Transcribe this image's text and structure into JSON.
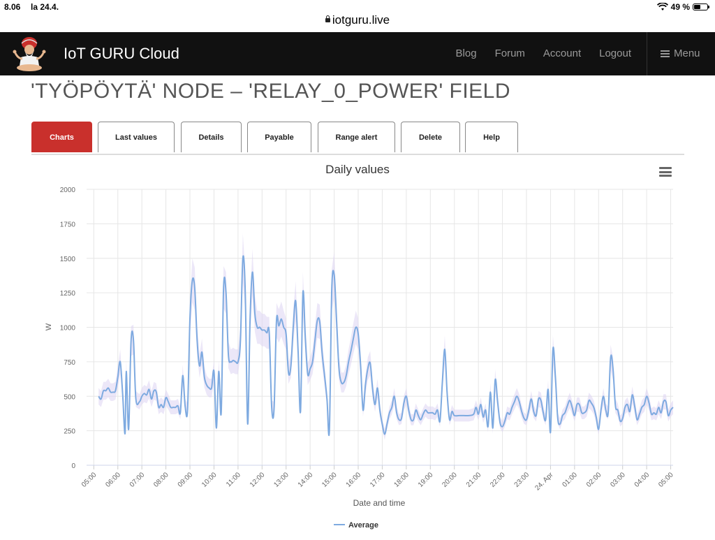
{
  "status": {
    "time": "8.06",
    "date": "la 24.4.",
    "battery_text": "49 %",
    "battery_level": 0.49
  },
  "url": "iotguru.live",
  "nav": {
    "brand": "IoT GURU Cloud",
    "links": [
      "Blog",
      "Forum",
      "Account",
      "Logout"
    ],
    "menu_label": "Menu"
  },
  "page_title": "'TYÖPÖYTÄ' NODE – 'RELAY_0_POWER' FIELD",
  "tabs": [
    {
      "label": "Charts",
      "active": true
    },
    {
      "label": "Last values",
      "active": false
    },
    {
      "label": "Details",
      "active": false
    },
    {
      "label": "Payable",
      "active": false
    },
    {
      "label": "Range alert",
      "active": false
    },
    {
      "label": "Delete",
      "active": false
    },
    {
      "label": "Help",
      "active": false
    }
  ],
  "colors": {
    "accent": "#c9302c",
    "series": "#7eaae0",
    "range": "#dcd3f2"
  },
  "chart_data": {
    "type": "line",
    "title": "Daily values",
    "xlabel": "Date and time",
    "ylabel": "W",
    "ylim": [
      0,
      2000
    ],
    "yticks": [
      0,
      250,
      500,
      750,
      1000,
      1250,
      1500,
      1750,
      2000
    ],
    "xlim": [
      4.7,
      29.1
    ],
    "xticks": [
      {
        "label": "05:00",
        "x": 5
      },
      {
        "label": "06:00",
        "x": 6
      },
      {
        "label": "07:00",
        "x": 7
      },
      {
        "label": "08:00",
        "x": 8
      },
      {
        "label": "09:00",
        "x": 9
      },
      {
        "label": "10:00",
        "x": 10
      },
      {
        "label": "11:00",
        "x": 11
      },
      {
        "label": "12:00",
        "x": 12
      },
      {
        "label": "13:00",
        "x": 13
      },
      {
        "label": "14:00",
        "x": 14
      },
      {
        "label": "15:00",
        "x": 15
      },
      {
        "label": "16:00",
        "x": 16
      },
      {
        "label": "17:00",
        "x": 17
      },
      {
        "label": "18:00",
        "x": 18
      },
      {
        "label": "19:00",
        "x": 19
      },
      {
        "label": "20:00",
        "x": 20
      },
      {
        "label": "21:00",
        "x": 21
      },
      {
        "label": "22:00",
        "x": 22
      },
      {
        "label": "23:00",
        "x": 23
      },
      {
        "label": "24. Apr",
        "x": 24
      },
      {
        "label": "01:00",
        "x": 25
      },
      {
        "label": "02:00",
        "x": 26
      },
      {
        "label": "03:00",
        "x": 27
      },
      {
        "label": "04:00",
        "x": 28
      },
      {
        "label": "05:00",
        "x": 29
      }
    ],
    "grid": true,
    "legend": "bottom-center",
    "series": [
      {
        "name": "Average",
        "points": [
          [
            5.2,
            500
          ],
          [
            5.3,
            480
          ],
          [
            5.4,
            540
          ],
          [
            5.5,
            540
          ],
          [
            5.6,
            560
          ],
          [
            5.7,
            530
          ],
          [
            5.8,
            530
          ],
          [
            5.9,
            540
          ],
          [
            6.0,
            640
          ],
          [
            6.1,
            750
          ],
          [
            6.2,
            520
          ],
          [
            6.3,
            230
          ],
          [
            6.35,
            680
          ],
          [
            6.45,
            260
          ],
          [
            6.55,
            900
          ],
          [
            6.65,
            910
          ],
          [
            6.75,
            480
          ],
          [
            6.9,
            460
          ],
          [
            7.0,
            500
          ],
          [
            7.1,
            520
          ],
          [
            7.2,
            510
          ],
          [
            7.3,
            550
          ],
          [
            7.4,
            480
          ],
          [
            7.5,
            540
          ],
          [
            7.6,
            530
          ],
          [
            7.7,
            420
          ],
          [
            7.8,
            440
          ],
          [
            7.9,
            420
          ],
          [
            8.0,
            490
          ],
          [
            8.1,
            460
          ],
          [
            8.2,
            420
          ],
          [
            8.3,
            420
          ],
          [
            8.4,
            420
          ],
          [
            8.5,
            430
          ],
          [
            8.6,
            380
          ],
          [
            8.7,
            650
          ],
          [
            8.8,
            430
          ],
          [
            8.9,
            400
          ],
          [
            9.0,
            1060
          ],
          [
            9.1,
            1340
          ],
          [
            9.2,
            1280
          ],
          [
            9.3,
            900
          ],
          [
            9.4,
            720
          ],
          [
            9.5,
            820
          ],
          [
            9.6,
            640
          ],
          [
            9.7,
            580
          ],
          [
            9.8,
            560
          ],
          [
            9.9,
            560
          ],
          [
            10.0,
            680
          ],
          [
            10.1,
            270
          ],
          [
            10.2,
            680
          ],
          [
            10.3,
            380
          ],
          [
            10.4,
            1290
          ],
          [
            10.5,
            1250
          ],
          [
            10.6,
            800
          ],
          [
            10.7,
            750
          ],
          [
            10.8,
            760
          ],
          [
            10.9,
            750
          ],
          [
            11.0,
            750
          ],
          [
            11.1,
            900
          ],
          [
            11.2,
            1500
          ],
          [
            11.3,
            1260
          ],
          [
            11.4,
            300
          ],
          [
            11.5,
            1050
          ],
          [
            11.6,
            1400
          ],
          [
            11.7,
            1100
          ],
          [
            11.8,
            1000
          ],
          [
            11.9,
            1000
          ],
          [
            12.0,
            980
          ],
          [
            12.1,
            980
          ],
          [
            12.2,
            960
          ],
          [
            12.3,
            960
          ],
          [
            12.4,
            420
          ],
          [
            12.5,
            410
          ],
          [
            12.6,
            1050
          ],
          [
            12.7,
            1010
          ],
          [
            12.8,
            1060
          ],
          [
            12.9,
            1000
          ],
          [
            13.0,
            950
          ],
          [
            13.1,
            670
          ],
          [
            13.2,
            720
          ],
          [
            13.3,
            1010
          ],
          [
            13.4,
            1190
          ],
          [
            13.5,
            820
          ],
          [
            13.6,
            390
          ],
          [
            13.7,
            1250
          ],
          [
            13.8,
            920
          ],
          [
            13.9,
            660
          ],
          [
            14.0,
            700
          ],
          [
            14.1,
            750
          ],
          [
            14.2,
            900
          ],
          [
            14.3,
            1050
          ],
          [
            14.4,
            1040
          ],
          [
            14.5,
            810
          ],
          [
            14.6,
            650
          ],
          [
            14.7,
            480
          ],
          [
            14.8,
            250
          ],
          [
            14.9,
            1270
          ],
          [
            15.0,
            1380
          ],
          [
            15.1,
            1050
          ],
          [
            15.2,
            700
          ],
          [
            15.3,
            600
          ],
          [
            15.4,
            600
          ],
          [
            15.5,
            650
          ],
          [
            15.6,
            750
          ],
          [
            15.7,
            830
          ],
          [
            15.8,
            920
          ],
          [
            15.9,
            1000
          ],
          [
            16.0,
            950
          ],
          [
            16.1,
            720
          ],
          [
            16.2,
            400
          ],
          [
            16.3,
            580
          ],
          [
            16.4,
            700
          ],
          [
            16.5,
            740
          ],
          [
            16.6,
            550
          ],
          [
            16.7,
            440
          ],
          [
            16.8,
            560
          ],
          [
            16.9,
            400
          ],
          [
            17.0,
            300
          ],
          [
            17.1,
            225
          ],
          [
            17.2,
            300
          ],
          [
            17.3,
            380
          ],
          [
            17.4,
            420
          ],
          [
            17.5,
            500
          ],
          [
            17.6,
            380
          ],
          [
            17.7,
            330
          ],
          [
            17.8,
            340
          ],
          [
            17.9,
            450
          ],
          [
            18.0,
            500
          ],
          [
            18.1,
            400
          ],
          [
            18.2,
            330
          ],
          [
            18.3,
            330
          ],
          [
            18.4,
            400
          ],
          [
            18.5,
            360
          ],
          [
            18.6,
            330
          ],
          [
            18.7,
            370
          ],
          [
            18.8,
            400
          ],
          [
            18.9,
            380
          ],
          [
            19.0,
            380
          ],
          [
            19.1,
            380
          ],
          [
            19.2,
            370
          ],
          [
            19.3,
            400
          ],
          [
            19.4,
            320
          ],
          [
            19.5,
            600
          ],
          [
            19.6,
            840
          ],
          [
            19.7,
            520
          ],
          [
            19.8,
            330
          ],
          [
            19.9,
            390
          ],
          [
            20.0,
            360
          ],
          [
            20.2,
            360
          ],
          [
            20.4,
            360
          ],
          [
            20.6,
            360
          ],
          [
            20.8,
            370
          ],
          [
            20.9,
            420
          ],
          [
            21.0,
            370
          ],
          [
            21.1,
            440
          ],
          [
            21.2,
            350
          ],
          [
            21.3,
            400
          ],
          [
            21.4,
            280
          ],
          [
            21.5,
            530
          ],
          [
            21.6,
            270
          ],
          [
            21.7,
            620
          ],
          [
            21.8,
            460
          ],
          [
            21.9,
            310
          ],
          [
            22.0,
            280
          ],
          [
            22.1,
            320
          ],
          [
            22.2,
            380
          ],
          [
            22.3,
            370
          ],
          [
            22.4,
            420
          ],
          [
            22.5,
            460
          ],
          [
            22.6,
            500
          ],
          [
            22.7,
            460
          ],
          [
            22.8,
            390
          ],
          [
            22.9,
            340
          ],
          [
            23.0,
            330
          ],
          [
            23.1,
            400
          ],
          [
            23.2,
            480
          ],
          [
            23.3,
            390
          ],
          [
            23.4,
            360
          ],
          [
            23.5,
            480
          ],
          [
            23.6,
            470
          ],
          [
            23.7,
            380
          ],
          [
            23.8,
            330
          ],
          [
            23.9,
            550
          ],
          [
            24.0,
            240
          ],
          [
            24.1,
            840
          ],
          [
            24.2,
            650
          ],
          [
            24.3,
            340
          ],
          [
            24.4,
            300
          ],
          [
            24.5,
            360
          ],
          [
            24.6,
            380
          ],
          [
            24.7,
            430
          ],
          [
            24.8,
            470
          ],
          [
            24.9,
            420
          ],
          [
            25.0,
            360
          ],
          [
            25.1,
            440
          ],
          [
            25.2,
            440
          ],
          [
            25.3,
            380
          ],
          [
            25.4,
            380
          ],
          [
            25.5,
            400
          ],
          [
            25.6,
            470
          ],
          [
            25.7,
            450
          ],
          [
            25.8,
            420
          ],
          [
            25.9,
            350
          ],
          [
            26.0,
            260
          ],
          [
            26.1,
            400
          ],
          [
            26.2,
            500
          ],
          [
            26.3,
            400
          ],
          [
            26.4,
            380
          ],
          [
            26.5,
            780
          ],
          [
            26.6,
            700
          ],
          [
            26.7,
            430
          ],
          [
            26.8,
            400
          ],
          [
            26.9,
            320
          ],
          [
            27.0,
            340
          ],
          [
            27.1,
            420
          ],
          [
            27.2,
            440
          ],
          [
            27.3,
            390
          ],
          [
            27.4,
            510
          ],
          [
            27.5,
            430
          ],
          [
            27.6,
            330
          ],
          [
            27.7,
            370
          ],
          [
            27.8,
            420
          ],
          [
            27.9,
            440
          ],
          [
            28.0,
            500
          ],
          [
            28.1,
            450
          ],
          [
            28.2,
            370
          ],
          [
            28.3,
            380
          ],
          [
            28.4,
            370
          ],
          [
            28.5,
            420
          ],
          [
            28.6,
            380
          ],
          [
            28.7,
            460
          ],
          [
            28.8,
            460
          ],
          [
            28.9,
            360
          ],
          [
            29.0,
            400
          ],
          [
            29.1,
            420
          ]
        ]
      }
    ]
  }
}
